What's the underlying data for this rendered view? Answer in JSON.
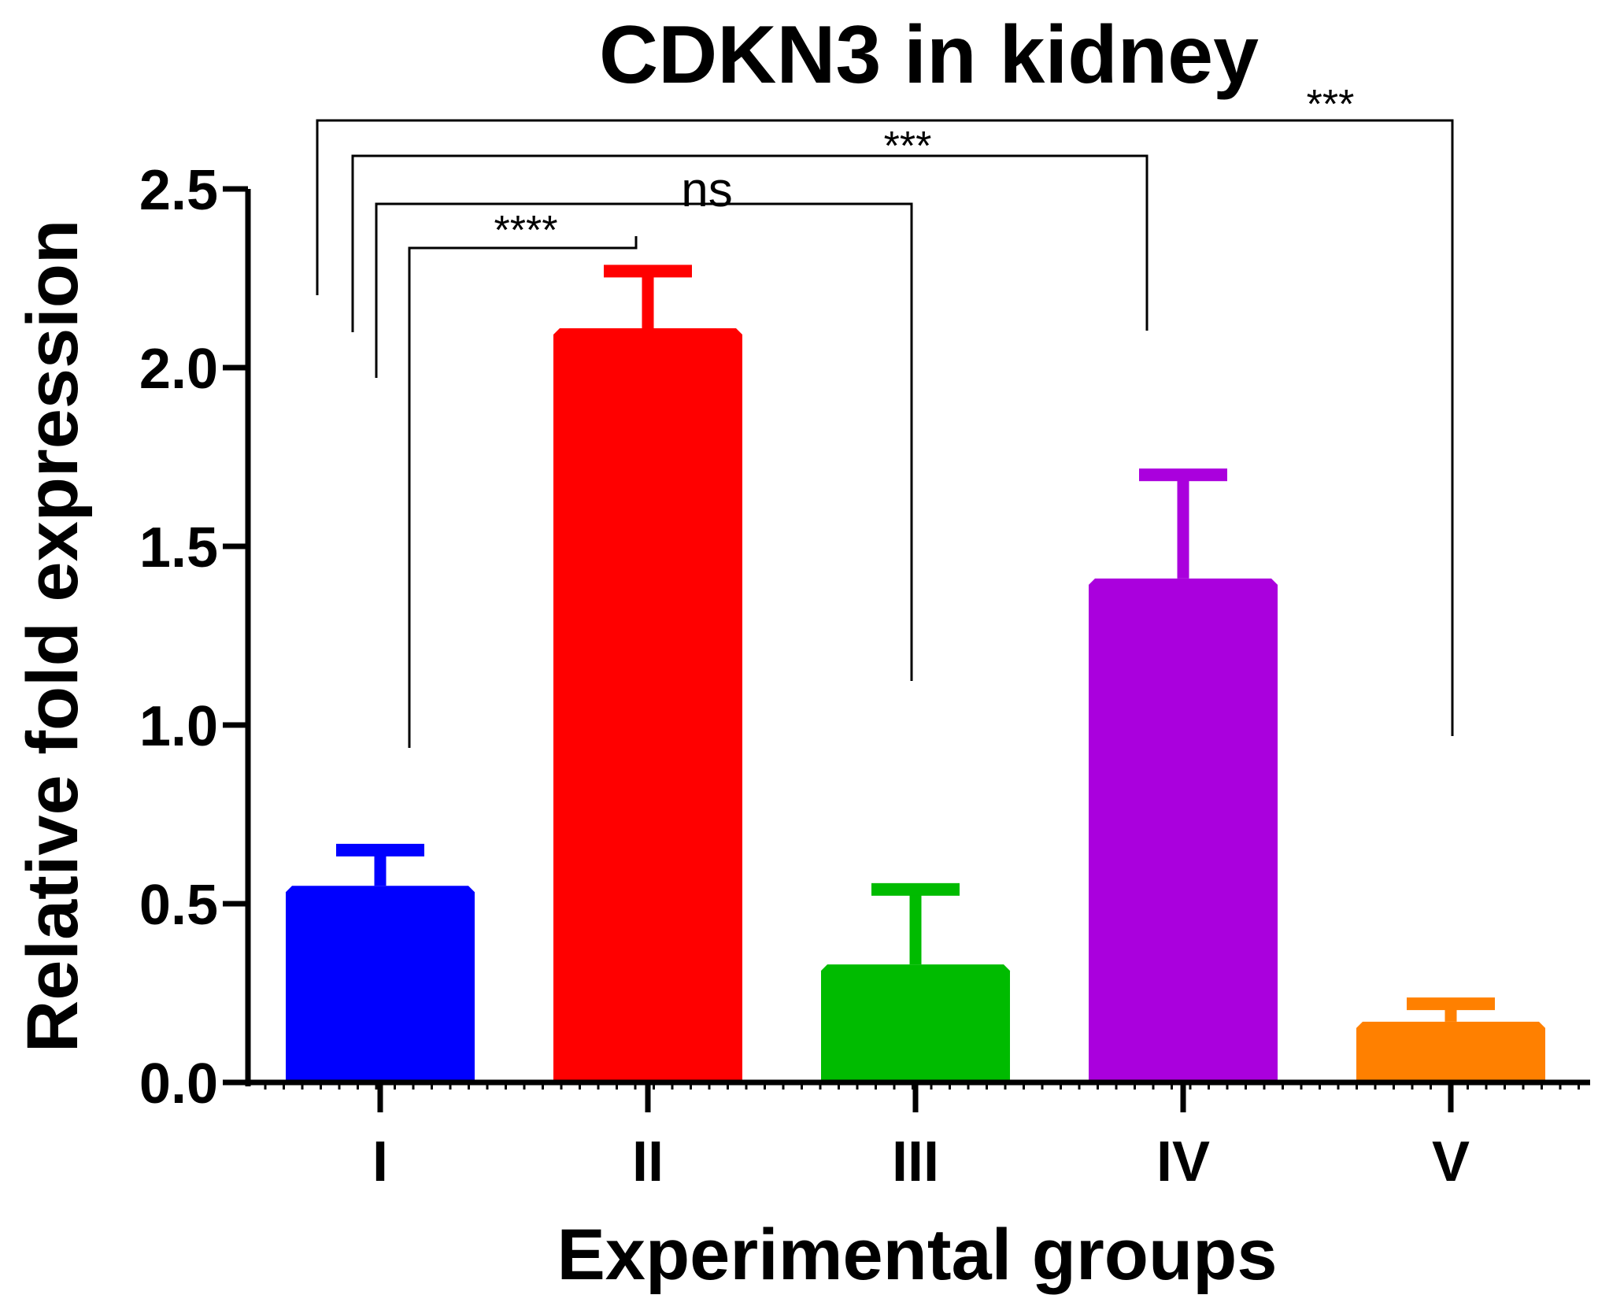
{
  "chart_data": {
    "type": "bar",
    "title": "CDKN3 in kidney",
    "xlabel": "Experimental groups",
    "ylabel": "Relative fold expression",
    "categories": [
      "I",
      "II",
      "III",
      "IV",
      "V"
    ],
    "values": [
      0.55,
      2.11,
      0.33,
      1.41,
      0.17
    ],
    "error_upper": [
      0.65,
      2.27,
      0.54,
      1.7,
      0.22
    ],
    "colors": [
      "#0000ff",
      "#ff0000",
      "#00bb00",
      "#aa00dd",
      "#ff8000"
    ],
    "ylim": [
      0,
      2.5
    ],
    "yticks": [
      "0.0",
      "0.5",
      "1.0",
      "1.5",
      "2.0",
      "2.5"
    ],
    "ytick_values": [
      0,
      0.5,
      1.0,
      1.5,
      2.0,
      2.5
    ],
    "significance": [
      {
        "from": "I",
        "to": "II",
        "label": "****"
      },
      {
        "from": "I",
        "to": "III",
        "label": "ns"
      },
      {
        "from": "I",
        "to": "IV",
        "label": "***"
      },
      {
        "from": "I",
        "to": "V",
        "label": "***"
      }
    ]
  }
}
